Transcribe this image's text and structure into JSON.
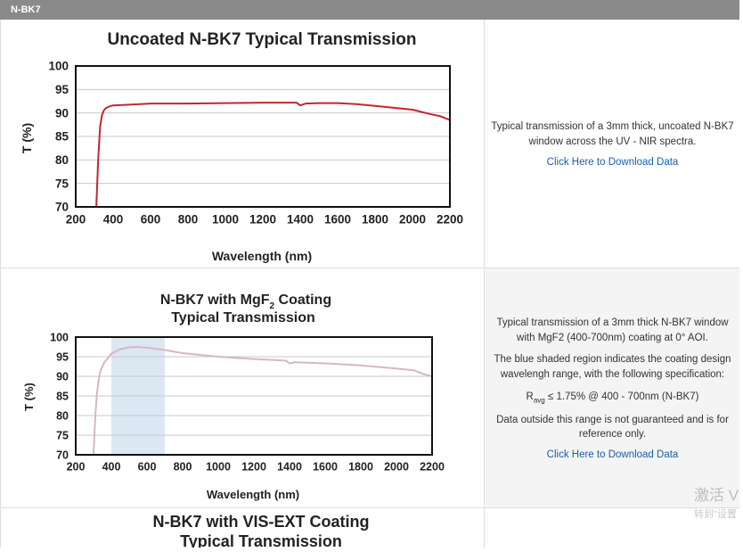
{
  "section_title": "N-BK7",
  "charts": [
    {
      "title": "Uncoated N-BK7 Typical Transmission",
      "xlabel": "Wavelength (nm)",
      "ylabel": "T (%)",
      "line_color": "#c0282d",
      "xticks": [
        "200",
        "400",
        "600",
        "800",
        "1000",
        "1200",
        "1400",
        "1600",
        "1800",
        "2000",
        "2200"
      ],
      "yticks": [
        "70",
        "75",
        "80",
        "85",
        "90",
        "95",
        "100"
      ],
      "description": "Typical transmission of a 3mm thick, uncoated N-BK7 window across the UV - NIR spectra.",
      "link": "Click Here to Download Data"
    },
    {
      "title_line1_pre": "N-BK7 with MgF",
      "title_line1_sub": "2",
      "title_line1_post": " Coating",
      "title_line2": "Typical Transmission",
      "xlabel": "Wavelength (nm)",
      "ylabel": "T (%)",
      "line_color": "#d4b8c4",
      "band_color": "#dbe8f4",
      "xticks": [
        "200",
        "400",
        "600",
        "800",
        "1000",
        "1200",
        "1400",
        "1600",
        "1800",
        "2000",
        "2200"
      ],
      "yticks": [
        "70",
        "75",
        "80",
        "85",
        "90",
        "95",
        "100"
      ],
      "description1": "Typical transmission of a 3mm thick N-BK7 window with MgF2 (400-700nm) coating at 0° AOI.",
      "description2": "The blue shaded region indicates the coating design wavelengh range, with the following specification:",
      "spec_R": "R",
      "spec_sub": "avg",
      "spec_rest": " ≤ 1.75% @ 400 - 700nm (N-BK7)",
      "description3": "Data outside this range is not guaranteed and is for reference only.",
      "link": "Click Here to Download Data"
    },
    {
      "title_line1": "N-BK7 with VIS-EXT Coating",
      "title_line2": "Typical Transmission"
    }
  ],
  "watermark_line1": "激活 V",
  "watermark_line2": "转到\"设置",
  "chart_data": [
    {
      "type": "line",
      "title": "Uncoated N-BK7 Typical Transmission",
      "xlabel": "Wavelength (nm)",
      "ylabel": "T (%)",
      "xlim": [
        200,
        2200
      ],
      "ylim": [
        70,
        100
      ],
      "x": [
        310,
        320,
        330,
        340,
        350,
        360,
        380,
        400,
        500,
        600,
        800,
        1000,
        1200,
        1380,
        1400,
        1430,
        1500,
        1600,
        1700,
        1800,
        1900,
        2000,
        2100,
        2150,
        2200
      ],
      "y": [
        70,
        80,
        87,
        89.5,
        90.5,
        91,
        91.4,
        91.6,
        91.8,
        92,
        92,
        92.1,
        92.2,
        92.2,
        91.6,
        92.0,
        92.1,
        92.1,
        91.9,
        91.5,
        91.1,
        90.7,
        89.7,
        89.3,
        88.5
      ],
      "grid": true
    },
    {
      "type": "line",
      "title": "N-BK7 with MgF2 Coating Typical Transmission",
      "xlabel": "Wavelength (nm)",
      "ylabel": "T (%)",
      "xlim": [
        200,
        2200
      ],
      "ylim": [
        70,
        100
      ],
      "band": [
        400,
        700
      ],
      "x": [
        300,
        310,
        320,
        330,
        340,
        360,
        400,
        450,
        500,
        550,
        600,
        700,
        800,
        1000,
        1200,
        1380,
        1400,
        1430,
        1600,
        1800,
        2000,
        2100,
        2150,
        2200
      ],
      "y": [
        70,
        80,
        86,
        89.5,
        91.5,
        93.5,
        95.8,
        96.9,
        97.4,
        97.5,
        97.3,
        96.7,
        95.9,
        95.0,
        94.4,
        94.0,
        93.3,
        93.6,
        93.3,
        92.8,
        92.0,
        91.5,
        90.6,
        90.0
      ],
      "grid": true
    }
  ]
}
